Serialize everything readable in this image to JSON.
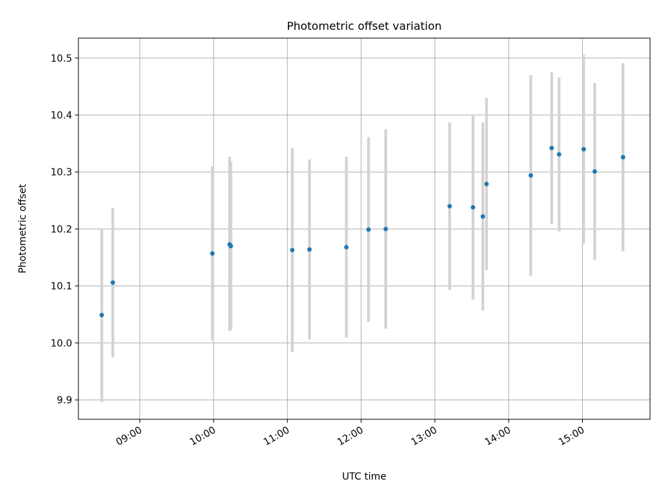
{
  "chart_data": {
    "type": "scatter",
    "title": "Photometric offset variation",
    "xlabel": "UTC time",
    "ylabel": "Photometric offset",
    "x_ticks": [
      "09:00",
      "10:00",
      "11:00",
      "12:00",
      "13:00",
      "14:00",
      "15:00"
    ],
    "y_ticks": [
      "9.9",
      "10.0",
      "10.1",
      "10.2",
      "10.3",
      "10.4",
      "10.5"
    ],
    "xlim": [
      "08:10",
      "15:55"
    ],
    "ylim": [
      9.866,
      10.535
    ],
    "grid": true,
    "errorbar_color": "#d3d3d3",
    "marker_color": "#1f77b4",
    "points": [
      {
        "x": "08:29",
        "y": 10.049,
        "err_low": 9.896,
        "err_high": 10.201
      },
      {
        "x": "08:38",
        "y": 10.106,
        "err_low": 9.975,
        "err_high": 10.237
      },
      {
        "x": "09:59",
        "y": 10.157,
        "err_low": 10.004,
        "err_high": 10.31
      },
      {
        "x": "10:13",
        "y": 10.173,
        "err_low": 10.021,
        "err_high": 10.327
      },
      {
        "x": "10:14",
        "y": 10.17,
        "err_low": 10.023,
        "err_high": 10.318
      },
      {
        "x": "11:04",
        "y": 10.163,
        "err_low": 9.984,
        "err_high": 10.342
      },
      {
        "x": "11:18",
        "y": 10.164,
        "err_low": 10.006,
        "err_high": 10.322
      },
      {
        "x": "11:48",
        "y": 10.168,
        "err_low": 10.009,
        "err_high": 10.327
      },
      {
        "x": "12:06",
        "y": 10.199,
        "err_low": 10.037,
        "err_high": 10.361
      },
      {
        "x": "12:20",
        "y": 10.2,
        "err_low": 10.025,
        "err_high": 10.375
      },
      {
        "x": "13:12",
        "y": 10.24,
        "err_low": 10.093,
        "err_high": 10.387
      },
      {
        "x": "13:31",
        "y": 10.238,
        "err_low": 10.076,
        "err_high": 10.4
      },
      {
        "x": "13:39",
        "y": 10.222,
        "err_low": 10.057,
        "err_high": 10.387
      },
      {
        "x": "13:42",
        "y": 10.279,
        "err_low": 10.128,
        "err_high": 10.43
      },
      {
        "x": "14:18",
        "y": 10.294,
        "err_low": 10.118,
        "err_high": 10.47
      },
      {
        "x": "14:35",
        "y": 10.342,
        "err_low": 10.209,
        "err_high": 10.475
      },
      {
        "x": "14:41",
        "y": 10.331,
        "err_low": 10.196,
        "err_high": 10.466
      },
      {
        "x": "15:01",
        "y": 10.34,
        "err_low": 10.174,
        "err_high": 10.506
      },
      {
        "x": "15:10",
        "y": 10.301,
        "err_low": 10.146,
        "err_high": 10.456
      },
      {
        "x": "15:33",
        "y": 10.326,
        "err_low": 10.161,
        "err_high": 10.491
      }
    ]
  }
}
